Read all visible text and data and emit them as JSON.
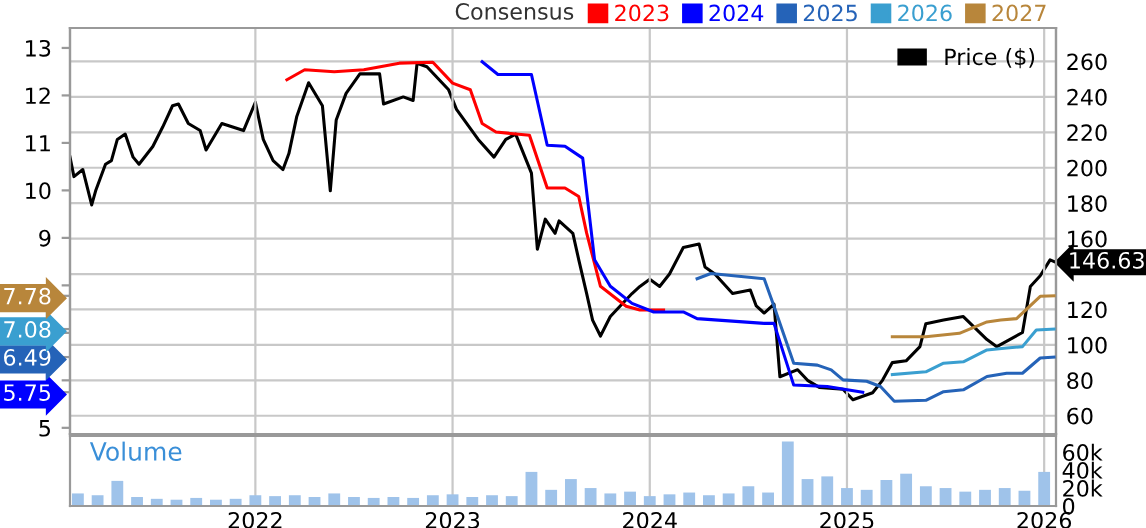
{
  "chart_data": [
    {
      "type": "line",
      "legend_title": "Consensus",
      "legend": "top right",
      "grid": true,
      "tick_labels": "y",
      "xlim": [
        2021.06,
        2026.06
      ],
      "xticks": [
        2022,
        2023,
        2024,
        2025,
        2026
      ],
      "ylim": [
        4.87,
        13.42
      ],
      "yticks": [
        5,
        5.75,
        {
          "value": 6,
          "label": null
        },
        6.49,
        {
          "value": 7,
          "label": null
        },
        7.08,
        7.78,
        {
          "value": 8,
          "label": null
        },
        9,
        10,
        11,
        12,
        13
      ],
      "y2lim": [
        49.7,
        278.9
      ],
      "y2ticks": [
        60,
        80,
        100,
        120,
        {
          "value": 140,
          "label": null
        },
        160,
        180,
        200,
        220,
        240,
        260
      ],
      "series": [
        {
          "name": "Price ($)",
          "color": "#000000",
          "axis": "y2",
          "x": [
            2021.06,
            2021.08,
            2021.125,
            2021.17,
            2021.19,
            2021.24,
            2021.27,
            2021.3,
            2021.34,
            2021.38,
            2021.41,
            2021.48,
            2021.53,
            2021.58,
            2021.61,
            2021.66,
            2021.72,
            2021.75,
            2021.83,
            2021.94,
            2022.0,
            2022.04,
            2022.09,
            2022.14,
            2022.17,
            2022.21,
            2022.27,
            2022.34,
            2022.38,
            2022.41,
            2022.46,
            2022.53,
            2022.63,
            2022.65,
            2022.75,
            2022.8,
            2022.82,
            2022.87,
            2022.98,
            2023.02,
            2023.13,
            2023.21,
            2023.27,
            2023.32,
            2023.4,
            2023.43,
            2023.47,
            2023.52,
            2023.54,
            2023.61,
            2023.64,
            2023.68,
            2023.71,
            2023.75,
            2023.8,
            2023.85,
            2023.91,
            2023.95,
            2024.0,
            2024.05,
            2024.1,
            2024.17,
            2024.25,
            2024.28,
            2024.33,
            2024.42,
            2024.51,
            2024.54,
            2024.58,
            2024.63,
            2024.66,
            2024.75,
            2024.8,
            2024.86,
            2024.98,
            2025.03,
            2025.13,
            2025.18,
            2025.23,
            2025.3,
            2025.37,
            2025.4,
            2025.49,
            2025.59,
            2025.71,
            2025.76,
            2025.89,
            2025.93,
            2025.98,
            2026.03,
            2026.06
          ],
          "values": [
            206,
            195,
            199,
            179,
            187,
            202,
            204,
            216,
            219,
            206,
            202,
            212,
            223,
            235,
            236,
            225,
            221,
            210,
            225,
            221,
            237,
            216,
            204,
            199,
            208,
            229,
            248,
            235,
            187,
            227,
            242,
            253,
            253,
            236,
            240,
            238,
            259,
            257,
            244,
            233,
            216,
            206,
            216,
            219,
            197,
            154,
            171,
            163,
            170,
            163,
            148,
            129,
            114,
            105,
            116,
            122,
            129,
            133,
            137,
            133,
            140,
            155,
            157,
            144,
            140,
            129,
            131,
            122,
            118,
            123,
            82,
            86,
            80,
            76,
            75,
            69,
            73,
            80,
            90,
            91,
            99,
            112,
            114,
            116,
            103,
            99,
            107,
            133,
            139,
            148,
            146.63
          ],
          "value_labels": [
            null,
            null,
            null,
            null,
            null,
            null,
            null,
            null,
            null,
            null,
            null,
            null,
            null,
            null,
            null,
            null,
            null,
            null,
            null,
            null,
            null,
            null,
            null,
            null,
            null,
            null,
            null,
            null,
            null,
            null,
            null,
            null,
            null,
            null,
            null,
            null,
            null,
            null,
            null,
            null,
            null,
            null,
            null,
            null,
            null,
            null,
            null,
            null,
            null,
            null,
            null,
            null,
            null,
            null,
            null,
            null,
            null,
            null,
            null,
            null,
            null,
            null,
            null,
            null,
            null,
            null,
            null,
            null,
            null,
            null,
            null,
            null,
            null,
            null,
            null,
            null,
            null,
            null,
            null,
            null,
            null,
            null,
            null,
            null,
            null,
            null,
            null,
            null,
            null,
            null,
            "146.63"
          ]
        },
        {
          "name": "2023",
          "color": "#ff0000",
          "x": [
            2022.16,
            2022.25,
            2022.4,
            2022.55,
            2022.73,
            2022.9,
            2023.0,
            2023.09,
            2023.15,
            2023.22,
            2023.39,
            2023.48,
            2023.57,
            2023.64,
            2023.68,
            2023.75,
            2023.88,
            2023.95,
            2024.07
          ],
          "values": [
            12.33,
            12.54,
            12.5,
            12.54,
            12.68,
            12.7,
            12.26,
            12.12,
            11.41,
            11.23,
            11.16,
            10.05,
            10.05,
            9.87,
            9.1,
            7.98,
            7.56,
            7.48,
            7.48
          ],
          "value_labels": [
            null,
            null,
            null,
            null,
            null,
            null,
            null,
            null,
            null,
            null,
            null,
            null,
            null,
            null,
            null,
            null,
            null,
            null,
            null
          ]
        },
        {
          "name": "2024",
          "color": "#0000ff",
          "x": [
            2023.15,
            2023.23,
            2023.4,
            2023.48,
            2023.57,
            2023.66,
            2023.72,
            2023.8,
            2023.91,
            2024.02,
            2024.17,
            2024.24,
            2024.58,
            2024.63,
            2024.73,
            2024.9,
            2025.08
          ],
          "values": [
            12.71,
            12.44,
            12.44,
            10.95,
            10.93,
            10.68,
            8.54,
            7.98,
            7.62,
            7.44,
            7.44,
            7.3,
            7.2,
            7.2,
            5.9,
            5.87,
            5.75
          ]
        },
        {
          "name": "2025",
          "color": "#2563b8",
          "x": [
            2024.24,
            2024.31,
            2024.58,
            2024.63,
            2024.73,
            2024.85,
            2024.92,
            2024.98,
            2025.1,
            2025.17,
            2025.24,
            2025.4,
            2025.49,
            2025.59,
            2025.71,
            2025.81,
            2025.89,
            2025.98,
            2026.05
          ],
          "values": [
            8.14,
            8.25,
            8.14,
            7.56,
            6.36,
            6.32,
            6.22,
            6.01,
            5.98,
            5.87,
            5.56,
            5.58,
            5.76,
            5.8,
            6.08,
            6.15,
            6.15,
            6.47,
            6.49
          ]
        },
        {
          "name": "2026",
          "color": "#3a9fd0",
          "x": [
            2025.23,
            2025.4,
            2025.49,
            2025.59,
            2025.71,
            2025.81,
            2025.89,
            2025.96,
            2026.05
          ],
          "values": [
            6.12,
            6.18,
            6.36,
            6.39,
            6.64,
            6.68,
            6.71,
            7.06,
            7.08
          ]
        },
        {
          "name": "2027",
          "color": "#b8863b",
          "x": [
            2025.23,
            2025.4,
            2025.57,
            2025.71,
            2025.78,
            2025.86,
            2025.98,
            2026.05
          ],
          "values": [
            6.92,
            6.92,
            6.99,
            7.23,
            7.27,
            7.3,
            7.77,
            7.78
          ]
        }
      ]
    },
    {
      "type": "bar",
      "title": "Volume",
      "grid": "x",
      "color": "#9fc3ea",
      "xlim": [
        2021.06,
        2026.06
      ],
      "xticks": [
        2022,
        2023,
        2024,
        2025,
        2026
      ],
      "ylim": [
        0,
        78000
      ],
      "yticks": [
        0,
        {
          "value": 20000,
          "label": "20k"
        },
        {
          "value": 40000,
          "label": "40k"
        },
        {
          "value": 60000,
          "label": "60k"
        }
      ],
      "x": [
        2021.1,
        2021.2,
        2021.3,
        2021.4,
        2021.5,
        2021.6,
        2021.7,
        2021.8,
        2021.9,
        2022.0,
        2022.1,
        2022.2,
        2022.3,
        2022.4,
        2022.5,
        2022.6,
        2022.7,
        2022.8,
        2022.9,
        2023.0,
        2023.1,
        2023.2,
        2023.3,
        2023.4,
        2023.5,
        2023.6,
        2023.7,
        2023.8,
        2023.9,
        2024.0,
        2024.1,
        2024.2,
        2024.3,
        2024.4,
        2024.5,
        2024.6,
        2024.7,
        2024.8,
        2024.9,
        2025.0,
        2025.1,
        2025.2,
        2025.3,
        2025.4,
        2025.5,
        2025.6,
        2025.7,
        2025.8,
        2025.9,
        2026.0
      ],
      "values": [
        14000,
        12000,
        28000,
        10000,
        8000,
        7000,
        9000,
        7000,
        8000,
        12000,
        11000,
        12000,
        10000,
        14000,
        10000,
        9000,
        10000,
        9000,
        12000,
        13000,
        10000,
        12000,
        11000,
        38000,
        18000,
        30000,
        20000,
        14000,
        16000,
        11000,
        13000,
        15000,
        12000,
        14000,
        22000,
        15000,
        72000,
        30000,
        33000,
        20000,
        18000,
        29000,
        36000,
        22000,
        20000,
        16000,
        18000,
        20000,
        17000,
        38000
      ]
    }
  ]
}
